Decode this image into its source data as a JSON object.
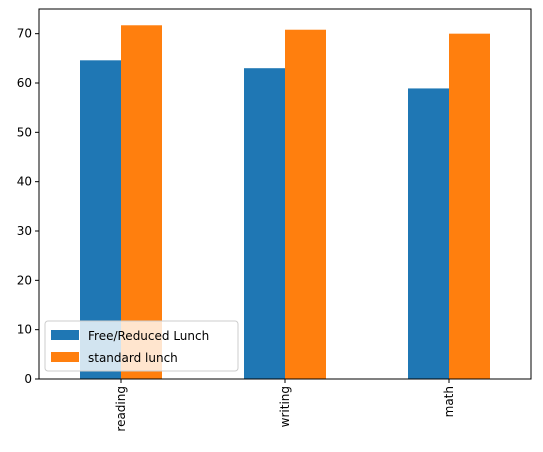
{
  "chart_data": {
    "type": "bar",
    "title": "",
    "xlabel": "",
    "ylabel": "",
    "categories": [
      "reading",
      "writing",
      "math"
    ],
    "series": [
      {
        "name": "Free/Reduced Lunch",
        "color": "#1f77b4",
        "values": [
          64.6,
          63.0,
          58.9
        ]
      },
      {
        "name": "standard lunch",
        "color": "#ff7f0e",
        "values": [
          71.7,
          70.8,
          70.0
        ]
      }
    ],
    "ylim": [
      0,
      75
    ],
    "yticks": [
      0,
      10,
      20,
      30,
      40,
      50,
      60,
      70
    ],
    "grid": false,
    "legend_position": "lower-left"
  }
}
